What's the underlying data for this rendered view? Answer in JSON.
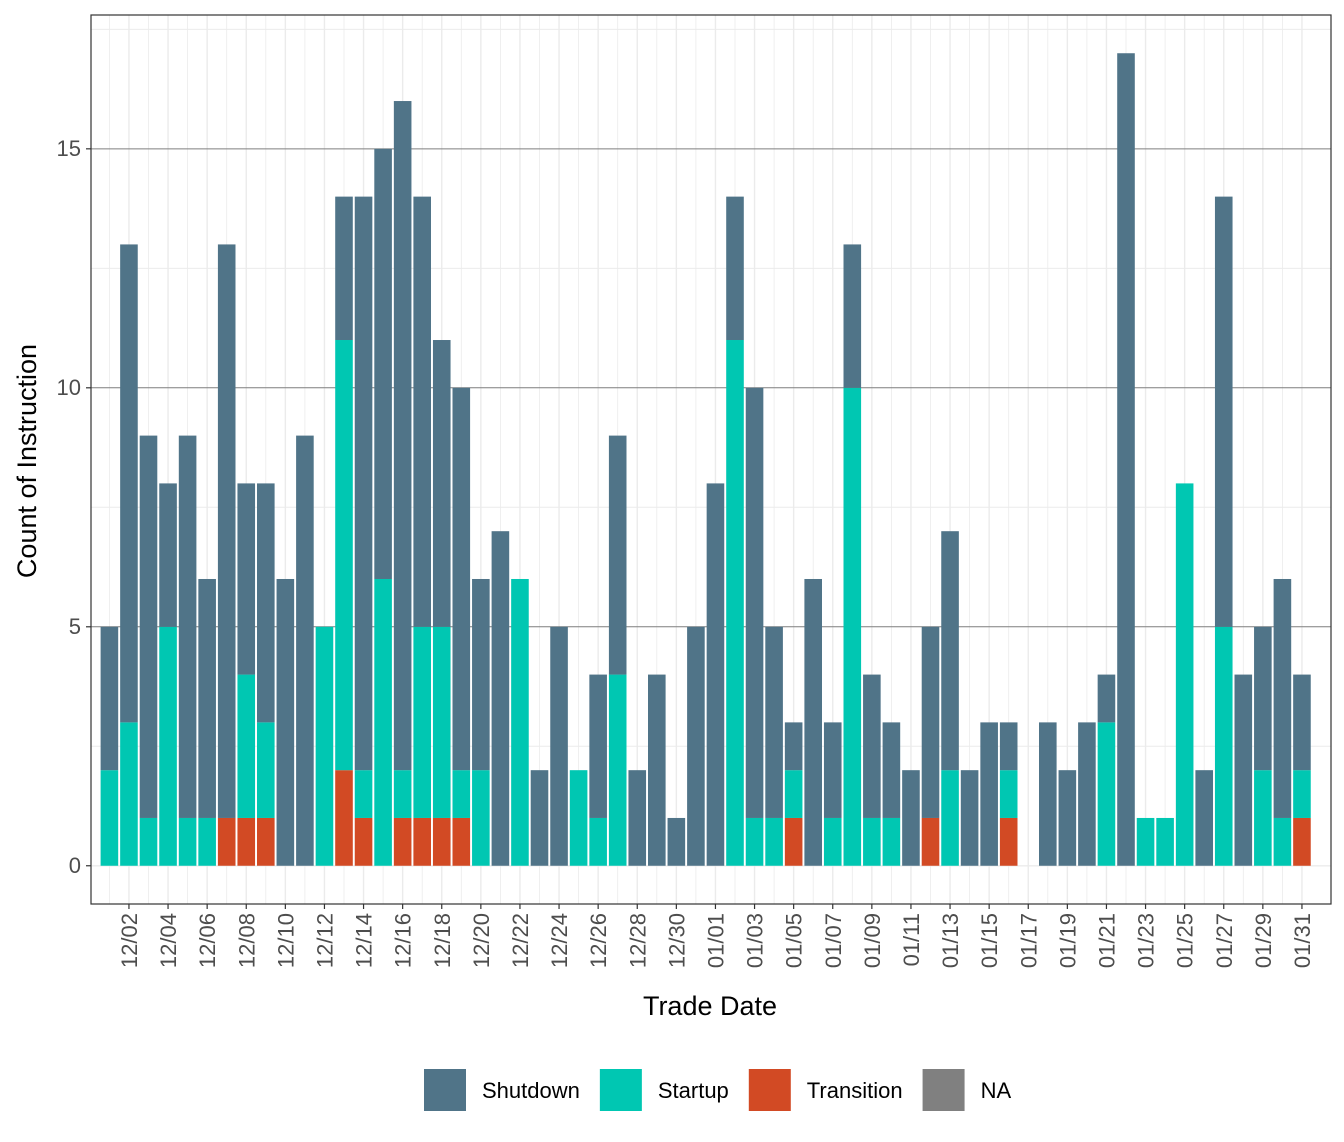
{
  "chart_data": {
    "type": "bar",
    "stacked": true,
    "title": "",
    "xlabel": "Trade Date",
    "ylabel": "Count of Instruction",
    "ylim": [
      -0.8,
      17.8
    ],
    "y_ticks": [
      0,
      5,
      10,
      15
    ],
    "x_tick_labels": [
      "12/02",
      "12/04",
      "12/06",
      "12/08",
      "12/10",
      "12/12",
      "12/14",
      "12/16",
      "12/18",
      "12/20",
      "12/22",
      "12/24",
      "12/26",
      "12/28",
      "12/30",
      "01/01",
      "01/03",
      "01/05",
      "01/07",
      "01/09",
      "01/11",
      "01/13",
      "01/15",
      "01/17",
      "01/19",
      "01/21",
      "01/23",
      "01/25",
      "01/27",
      "01/29",
      "01/31"
    ],
    "categories": [
      "12/01",
      "12/02",
      "12/03",
      "12/04",
      "12/05",
      "12/06",
      "12/07",
      "12/08",
      "12/09",
      "12/10",
      "12/11",
      "12/12",
      "12/13",
      "12/14",
      "12/15",
      "12/16",
      "12/17",
      "12/18",
      "12/19",
      "12/20",
      "12/21",
      "12/22",
      "12/23",
      "12/24",
      "12/25",
      "12/26",
      "12/27",
      "12/28",
      "12/29",
      "12/30",
      "12/31",
      "01/01",
      "01/02",
      "01/03",
      "01/04",
      "01/05",
      "01/06",
      "01/07",
      "01/08",
      "01/09",
      "01/10",
      "01/11",
      "01/12",
      "01/13",
      "01/14",
      "01/15",
      "01/16",
      "01/17",
      "01/18",
      "01/19",
      "01/20",
      "01/21",
      "01/22",
      "01/23",
      "01/24",
      "01/25",
      "01/26",
      "01/27",
      "01/28",
      "01/29",
      "01/30",
      "01/31"
    ],
    "series": [
      {
        "name": "Transition",
        "color": "#D24A24",
        "values": [
          0,
          0,
          0,
          0,
          0,
          0,
          1,
          1,
          1,
          0,
          0,
          0,
          2,
          1,
          0,
          1,
          1,
          1,
          1,
          0,
          0,
          0,
          0,
          0,
          0,
          0,
          0,
          0,
          0,
          0,
          0,
          0,
          0,
          0,
          0,
          1,
          0,
          0,
          0,
          0,
          0,
          0,
          1,
          0,
          0,
          0,
          1,
          0,
          0,
          0,
          0,
          0,
          0,
          0,
          0,
          0,
          0,
          0,
          0,
          0,
          0,
          1
        ]
      },
      {
        "name": "Startup",
        "color": "#00C7B2",
        "values": [
          2,
          3,
          1,
          5,
          1,
          1,
          0,
          3,
          2,
          0,
          0,
          5,
          9,
          1,
          6,
          1,
          4,
          4,
          1,
          2,
          0,
          6,
          0,
          0,
          2,
          1,
          4,
          0,
          0,
          0,
          0,
          0,
          11,
          1,
          1,
          1,
          0,
          1,
          10,
          1,
          1,
          0,
          0,
          2,
          0,
          0,
          1,
          0,
          0,
          0,
          0,
          3,
          0,
          1,
          1,
          8,
          0,
          5,
          0,
          2,
          1,
          1
        ]
      },
      {
        "name": "Shutdown",
        "color": "#507488",
        "values": [
          3,
          10,
          8,
          3,
          8,
          5,
          12,
          4,
          5,
          6,
          9,
          0,
          3,
          12,
          9,
          14,
          9,
          6,
          8,
          4,
          7,
          0,
          2,
          5,
          0,
          3,
          5,
          2,
          4,
          1,
          5,
          8,
          3,
          9,
          4,
          1,
          6,
          2,
          3,
          3,
          2,
          2,
          4,
          5,
          2,
          3,
          1,
          0,
          3,
          2,
          3,
          1,
          17,
          0,
          0,
          0,
          2,
          9,
          4,
          3,
          5,
          2
        ]
      },
      {
        "name": "NA",
        "color": "#808080",
        "values": [
          0,
          0,
          0,
          0,
          0,
          0,
          0,
          0,
          0,
          0,
          0,
          0,
          0,
          0,
          0,
          0,
          0,
          0,
          0,
          0,
          0,
          0,
          0,
          0,
          0,
          0,
          0,
          0,
          0,
          0,
          0,
          0,
          0,
          0,
          0,
          0,
          0,
          0,
          0,
          0,
          0,
          0,
          0,
          0,
          0,
          0,
          0,
          0,
          0,
          0,
          0,
          0,
          0,
          0,
          0,
          0,
          0,
          0,
          0,
          0,
          0,
          0
        ]
      }
    ],
    "grid": true,
    "legend": {
      "position": "bottom",
      "entries": [
        {
          "label": "Shutdown",
          "color": "#507488"
        },
        {
          "label": "Startup",
          "color": "#00C7B2"
        },
        {
          "label": "Transition",
          "color": "#D24A24"
        },
        {
          "label": "NA",
          "color": "#808080"
        }
      ]
    }
  }
}
